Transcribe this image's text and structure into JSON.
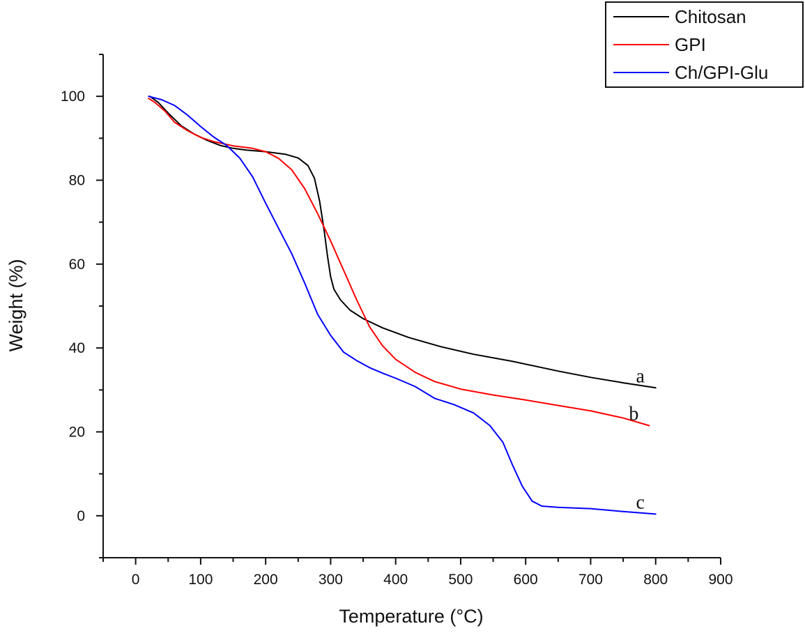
{
  "chart_data": {
    "type": "line",
    "title": "",
    "xlabel": "Temperature (°C)",
    "ylabel": "Weight (%)",
    "xlim": [
      -50,
      900
    ],
    "ylim": [
      -10,
      110
    ],
    "x_ticks": [
      0,
      100,
      200,
      300,
      400,
      500,
      600,
      700,
      800,
      900
    ],
    "y_ticks": [
      0,
      20,
      40,
      60,
      80,
      100
    ],
    "x_minor_step": 50,
    "y_minor_step": 10,
    "legend_position": "top-right",
    "series": [
      {
        "name": "Chitosan",
        "color": "#000000",
        "label": "a",
        "x": [
          22,
          35,
          50,
          70,
          90,
          110,
          130,
          150,
          170,
          200,
          230,
          250,
          265,
          275,
          283,
          290,
          295,
          300,
          305,
          315,
          330,
          350,
          380,
          420,
          470,
          520,
          580,
          650,
          700,
          750,
          800
        ],
        "y": [
          100,
          98.5,
          96,
          93,
          91,
          89.5,
          88.3,
          87.6,
          87.2,
          86.8,
          86.2,
          85.3,
          83.5,
          80.5,
          75,
          68,
          62,
          57,
          54,
          51.5,
          49,
          47,
          44.8,
          42.5,
          40.3,
          38.5,
          36.8,
          34.5,
          33,
          31.7,
          30.5
        ]
      },
      {
        "name": "GPI",
        "color": "#ff0000",
        "label": "b",
        "x": [
          20,
          30,
          45,
          60,
          80,
          100,
          120,
          150,
          180,
          200,
          220,
          240,
          260,
          280,
          300,
          320,
          340,
          360,
          380,
          400,
          430,
          460,
          500,
          550,
          600,
          650,
          700,
          750,
          790
        ],
        "y": [
          99.5,
          98.5,
          96.5,
          93.8,
          91.8,
          90.2,
          89.2,
          88.2,
          87.6,
          86.8,
          85.2,
          82.5,
          78,
          72,
          65.5,
          58.5,
          51.5,
          45,
          40.5,
          37.3,
          34.2,
          32,
          30.2,
          28.8,
          27.6,
          26.3,
          25,
          23.3,
          21.5
        ]
      },
      {
        "name": "Ch/GPI-Glu",
        "color": "#0000ff",
        "label": "c",
        "x": [
          20,
          40,
          60,
          80,
          100,
          120,
          140,
          160,
          180,
          200,
          220,
          240,
          260,
          280,
          300,
          320,
          340,
          360,
          380,
          400,
          430,
          460,
          490,
          520,
          545,
          565,
          580,
          595,
          610,
          625,
          650,
          700,
          750,
          800
        ],
        "y": [
          100,
          99.2,
          97.8,
          95.5,
          92.8,
          90.3,
          88.3,
          85.3,
          80.8,
          74.5,
          68.5,
          62.5,
          55.5,
          48,
          43,
          39,
          37,
          35.3,
          34,
          32.8,
          30.8,
          28,
          26.5,
          24.5,
          21.5,
          17.5,
          12,
          7,
          3.5,
          2.3,
          2,
          1.7,
          1,
          0.4
        ]
      }
    ]
  }
}
